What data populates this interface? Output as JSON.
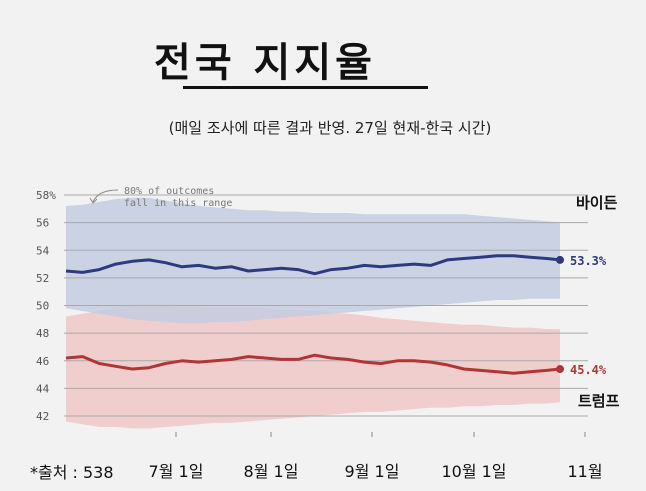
{
  "title": "전국 지지율",
  "subtitle": "(매일 조사에 따른 결과 반영. 27일 현재-한국 시간)",
  "source": "*출처 :  538",
  "colors": {
    "biden": "#2e3a80",
    "biden_band": "#c4cce2",
    "trump": "#b23535",
    "trump_band": "#f0c4c4",
    "grid": "#a9a9a9",
    "background": "#f2f2f2"
  },
  "chart_data": {
    "type": "line",
    "annotation": "80% of outcomes fall in this range",
    "yticks": [
      "58%",
      "56",
      "54",
      "52",
      "50",
      "48",
      "46",
      "44",
      "42"
    ],
    "ylim": [
      41.5,
      58
    ],
    "x_ticks": [
      "7월 1일",
      "8월 1일",
      "9월 1일",
      "10월 1일",
      "11월"
    ],
    "series": [
      {
        "name": "바이든",
        "end_label": "53.3%",
        "x": [
          0,
          5,
          10,
          15,
          20,
          25,
          30,
          35,
          40,
          45,
          50,
          55,
          60,
          65,
          70,
          75,
          80,
          85,
          90,
          95,
          100,
          105,
          110,
          115,
          120,
          125,
          130,
          135,
          140,
          145,
          149
        ],
        "values": [
          52.5,
          52.4,
          52.6,
          53.0,
          53.2,
          53.3,
          53.1,
          52.8,
          52.9,
          52.7,
          52.8,
          52.5,
          52.6,
          52.7,
          52.6,
          52.3,
          52.6,
          52.7,
          52.9,
          52.8,
          52.9,
          53.0,
          52.9,
          53.3,
          53.4,
          53.5,
          53.6,
          53.6,
          53.5,
          53.4,
          53.3
        ],
        "band_low": [
          49.8,
          49.6,
          49.4,
          49.2,
          49.0,
          48.9,
          48.8,
          48.7,
          48.7,
          48.8,
          48.8,
          48.9,
          49.0,
          49.1,
          49.2,
          49.3,
          49.4,
          49.5,
          49.6,
          49.7,
          49.8,
          49.9,
          50.0,
          50.1,
          50.2,
          50.3,
          50.4,
          50.4,
          50.5,
          50.5,
          50.5
        ],
        "band_high": [
          57.2,
          57.3,
          57.5,
          57.7,
          57.8,
          57.8,
          57.6,
          57.4,
          57.2,
          57.1,
          57.0,
          56.9,
          56.9,
          56.8,
          56.8,
          56.7,
          56.7,
          56.7,
          56.6,
          56.6,
          56.6,
          56.6,
          56.6,
          56.6,
          56.6,
          56.5,
          56.4,
          56.3,
          56.2,
          56.1,
          56.0
        ]
      },
      {
        "name": "트럼프",
        "end_label": "45.4%",
        "x": [
          0,
          5,
          10,
          15,
          20,
          25,
          30,
          35,
          40,
          45,
          50,
          55,
          60,
          65,
          70,
          75,
          80,
          85,
          90,
          95,
          100,
          105,
          110,
          115,
          120,
          125,
          130,
          135,
          140,
          145,
          149
        ],
        "values": [
          46.2,
          46.3,
          45.8,
          45.6,
          45.4,
          45.5,
          45.8,
          46.0,
          45.9,
          46.0,
          46.1,
          46.3,
          46.2,
          46.1,
          46.1,
          46.4,
          46.2,
          46.1,
          45.9,
          45.8,
          46.0,
          46.0,
          45.9,
          45.7,
          45.4,
          45.3,
          45.2,
          45.1,
          45.2,
          45.3,
          45.4
        ],
        "band_low": [
          41.6,
          41.4,
          41.2,
          41.2,
          41.1,
          41.1,
          41.2,
          41.3,
          41.4,
          41.5,
          41.5,
          41.6,
          41.7,
          41.8,
          41.9,
          42.0,
          42.1,
          42.2,
          42.3,
          42.3,
          42.4,
          42.5,
          42.6,
          42.6,
          42.7,
          42.7,
          42.8,
          42.8,
          42.9,
          42.9,
          43.0
        ],
        "band_high": [
          49.2,
          49.4,
          49.6,
          49.9,
          50.0,
          50.1,
          50.0,
          49.9,
          49.9,
          49.8,
          49.8,
          49.8,
          49.8,
          49.7,
          49.7,
          49.6,
          49.5,
          49.4,
          49.3,
          49.1,
          49.0,
          48.9,
          48.8,
          48.7,
          48.6,
          48.6,
          48.5,
          48.4,
          48.4,
          48.3,
          48.3
        ]
      }
    ]
  }
}
